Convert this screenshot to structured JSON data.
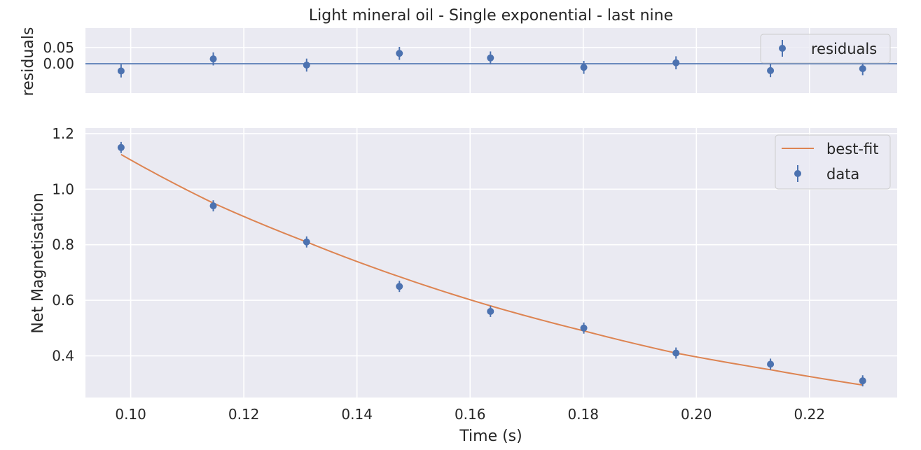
{
  "chart_data": [
    {
      "type": "scatter",
      "title": "Light mineral oil - Single exponential - last nine",
      "xlabel": "",
      "ylabel": "residuals",
      "xlim": [
        0.092,
        0.2355
      ],
      "ylim": [
        -0.09,
        0.11
      ],
      "yticks": [
        0.0,
        0.05
      ],
      "ytick_labels": [
        "0.00",
        "0.05"
      ],
      "grid": true,
      "hline": 0.0,
      "legend_position": "top-right",
      "series": [
        {
          "name": "residuals",
          "kind": "errorbar",
          "color": "#4c72b0",
          "x": [
            0.0983,
            0.1146,
            0.1311,
            0.1475,
            0.1636,
            0.1801,
            0.1964,
            0.2131,
            0.2294
          ],
          "y": [
            -0.022,
            0.015,
            -0.004,
            0.032,
            0.018,
            -0.011,
            0.003,
            -0.021,
            -0.015
          ],
          "yerr": [
            0.02,
            0.02,
            0.02,
            0.02,
            0.02,
            0.02,
            0.02,
            0.02,
            0.02
          ]
        }
      ]
    },
    {
      "type": "line",
      "title": "",
      "xlabel": "Time (s)",
      "ylabel": "Net Magnetisation",
      "xlim": [
        0.092,
        0.2355
      ],
      "ylim": [
        0.25,
        1.22
      ],
      "xticks": [
        0.1,
        0.12,
        0.14,
        0.16,
        0.18,
        0.2,
        0.22
      ],
      "xtick_labels": [
        "0.10",
        "0.12",
        "0.14",
        "0.16",
        "0.18",
        "0.20",
        "0.22"
      ],
      "yticks": [
        0.4,
        0.6,
        0.8,
        1.0,
        1.2
      ],
      "ytick_labels": [
        "0.4",
        "0.6",
        "0.8",
        "1.0",
        "1.2"
      ],
      "grid": true,
      "legend_position": "top-right",
      "series": [
        {
          "name": "best-fit",
          "kind": "line",
          "color": "#dd8452",
          "x": [
            0.0983,
            0.1146,
            0.1311,
            0.1475,
            0.1636,
            0.1801,
            0.1964,
            0.2131,
            0.2294
          ],
          "y": [
            1.125,
            0.95,
            0.81,
            0.685,
            0.58,
            0.49,
            0.41,
            0.35,
            0.295
          ]
        },
        {
          "name": "data",
          "kind": "errorbar",
          "color": "#4c72b0",
          "x": [
            0.0983,
            0.1146,
            0.1311,
            0.1475,
            0.1636,
            0.1801,
            0.1964,
            0.2131,
            0.2294
          ],
          "y": [
            1.15,
            0.94,
            0.81,
            0.65,
            0.56,
            0.5,
            0.41,
            0.37,
            0.31
          ],
          "yerr": [
            0.02,
            0.02,
            0.02,
            0.02,
            0.02,
            0.02,
            0.02,
            0.02,
            0.02
          ]
        }
      ]
    }
  ]
}
